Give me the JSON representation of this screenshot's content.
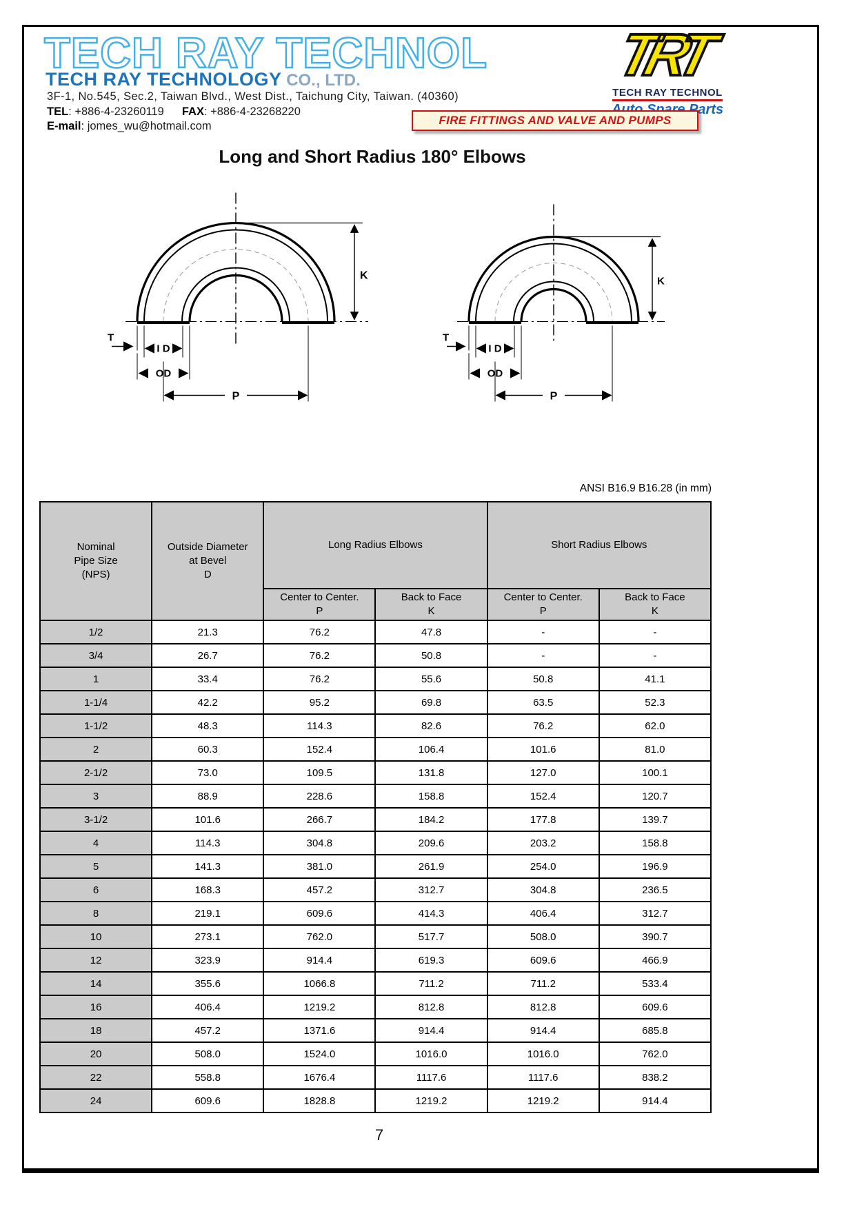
{
  "header": {
    "logo_outline": "TECH RAY TECHNOL",
    "company_bold": "TECH RAY TECHNOLOGY",
    "company_suffix": " CO., LTD.",
    "address": "3F-1, No.545, Sec.2, Taiwan Blvd., West Dist., Taichung City, Taiwan. (40360)",
    "tel_label": "TEL",
    "tel_value": ": +886-4-23260119",
    "fax_label": "FAX",
    "fax_value": ": +886-4-23268220",
    "email_label": "E-mail",
    "email_value": ": jomes_wu@hotmail.com",
    "trt": {
      "acronym": "TRT",
      "line1": "TECH RAY TECHNOL",
      "line2": "Auto Spare Parts"
    },
    "banner": "FIRE FITTINGS AND VALVE AND PUMPS"
  },
  "title": "Long and Short Radius 180° Elbows",
  "diagram_labels": {
    "k": "K",
    "t": "T",
    "id": "I D",
    "od": "OD",
    "p": "P"
  },
  "standard_note": "ANSI B16.9 B16.28 (in mm)",
  "table": {
    "col1_header": [
      "Nominal",
      "Pipe Size",
      "(NPS)"
    ],
    "col2_header": [
      "Outside Diameter",
      "at Bevel",
      "D"
    ],
    "group_long": "Long Radius Elbows",
    "group_short": "Short Radius Elbows",
    "sub_headers": {
      "lr_p": [
        "Center to Center.",
        "P"
      ],
      "lr_k": [
        "Back to Face",
        "K"
      ],
      "sr_p": [
        "Center to Center.",
        "P"
      ],
      "sr_k": [
        "Back to Face",
        "K"
      ]
    },
    "rows": [
      [
        "1/2",
        "21.3",
        "76.2",
        "47.8",
        "-",
        "-"
      ],
      [
        "3/4",
        "26.7",
        "76.2",
        "50.8",
        "-",
        "-"
      ],
      [
        "1",
        "33.4",
        "76.2",
        "55.6",
        "50.8",
        "41.1"
      ],
      [
        "1-1/4",
        "42.2",
        "95.2",
        "69.8",
        "63.5",
        "52.3"
      ],
      [
        "1-1/2",
        "48.3",
        "114.3",
        "82.6",
        "76.2",
        "62.0"
      ],
      [
        "2",
        "60.3",
        "152.4",
        "106.4",
        "101.6",
        "81.0"
      ],
      [
        "2-1/2",
        "73.0",
        "109.5",
        "131.8",
        "127.0",
        "100.1"
      ],
      [
        "3",
        "88.9",
        "228.6",
        "158.8",
        "152.4",
        "120.7"
      ],
      [
        "3-1/2",
        "101.6",
        "266.7",
        "184.2",
        "177.8",
        "139.7"
      ],
      [
        "4",
        "114.3",
        "304.8",
        "209.6",
        "203.2",
        "158.8"
      ],
      [
        "5",
        "141.3",
        "381.0",
        "261.9",
        "254.0",
        "196.9"
      ],
      [
        "6",
        "168.3",
        "457.2",
        "312.7",
        "304.8",
        "236.5"
      ],
      [
        "8",
        "219.1",
        "609.6",
        "414.3",
        "406.4",
        "312.7"
      ],
      [
        "10",
        "273.1",
        "762.0",
        "517.7",
        "508.0",
        "390.7"
      ],
      [
        "12",
        "323.9",
        "914.4",
        "619.3",
        "609.6",
        "466.9"
      ],
      [
        "14",
        "355.6",
        "1066.8",
        "711.2",
        "711.2",
        "533.4"
      ],
      [
        "16",
        "406.4",
        "1219.2",
        "812.8",
        "812.8",
        "609.6"
      ],
      [
        "18",
        "457.2",
        "1371.6",
        "914.4",
        "914.4",
        "685.8"
      ],
      [
        "20",
        "508.0",
        "1524.0",
        "1016.0",
        "1016.0",
        "762.0"
      ],
      [
        "22",
        "558.8",
        "1676.4",
        "1117.6",
        "1117.6",
        "838.2"
      ],
      [
        "24",
        "609.6",
        "1828.8",
        "1219.2",
        "1219.2",
        "914.4"
      ]
    ]
  },
  "page_number": "7",
  "colors": {
    "logo_outline_blue": "#45b0e5",
    "company_blue": "#1c75bc",
    "trt_yellow": "#f7e400",
    "trt_navy": "#1a2a5a",
    "banner_red": "#d41414",
    "banner_bg": "#fbf6dd",
    "table_header_gray": "#cbcbcb"
  }
}
